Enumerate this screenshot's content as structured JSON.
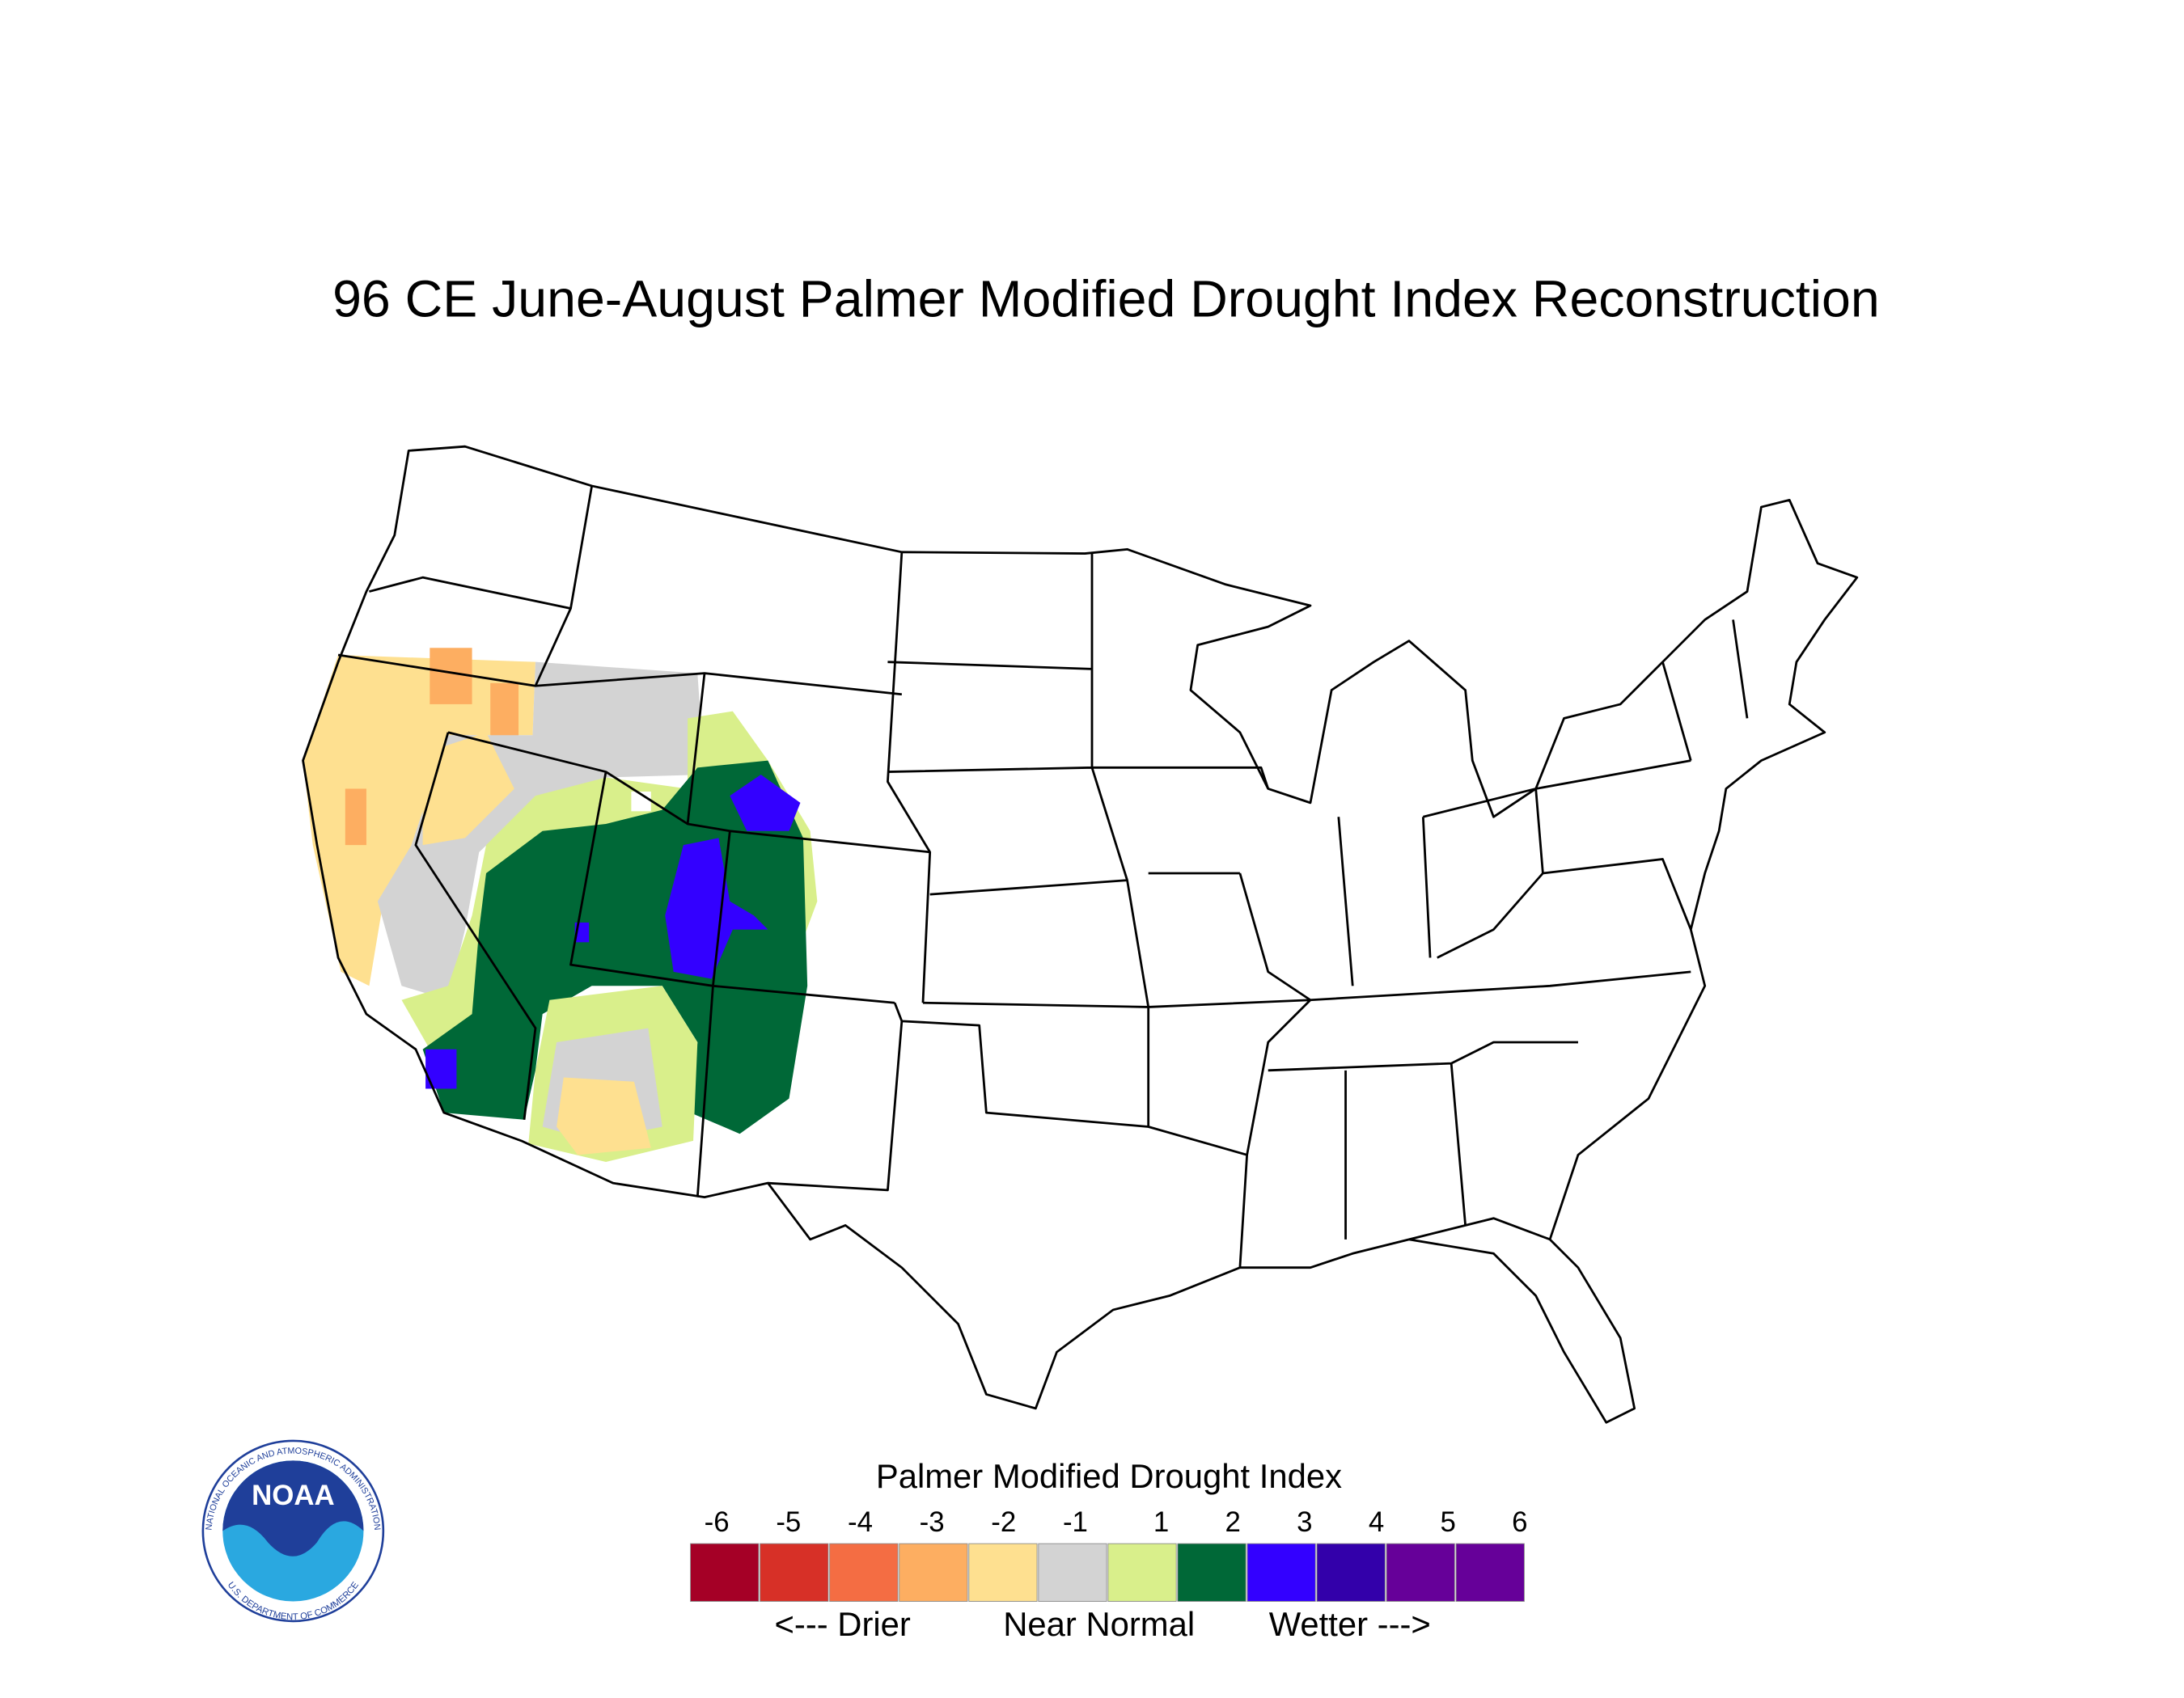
{
  "title": "96 CE  June-August  Palmer Modified Drought Index Reconstruction",
  "legend": {
    "title": "Palmer Modified Drought Index",
    "bins": [
      {
        "label": "-6",
        "color": "#a50026"
      },
      {
        "label": "-5",
        "color": "#d73027"
      },
      {
        "label": "-4",
        "color": "#f46d43"
      },
      {
        "label": "-3",
        "color": "#fdae61"
      },
      {
        "label": "-2",
        "color": "#fee090"
      },
      {
        "label": "-1",
        "color": "#d3d3d3"
      },
      {
        "label": "1",
        "color": "#d9ef8b"
      },
      {
        "label": "2",
        "color": "#006837"
      },
      {
        "label": "3",
        "color": "#3300ff"
      },
      {
        "label": "4",
        "color": "#3300aa"
      },
      {
        "label": "5",
        "color": "#660099"
      },
      {
        "label": "6",
        "color": "#660099"
      }
    ],
    "captions": [
      "<--- Drier",
      "Near Normal",
      "Wetter --->"
    ]
  },
  "logo": {
    "text": "NOAA",
    "ring_top": "NATIONAL OCEANIC AND ATMOSPHERIC ADMINISTRATION",
    "ring_bottom": "U.S. DEPARTMENT OF COMMERCE"
  }
}
